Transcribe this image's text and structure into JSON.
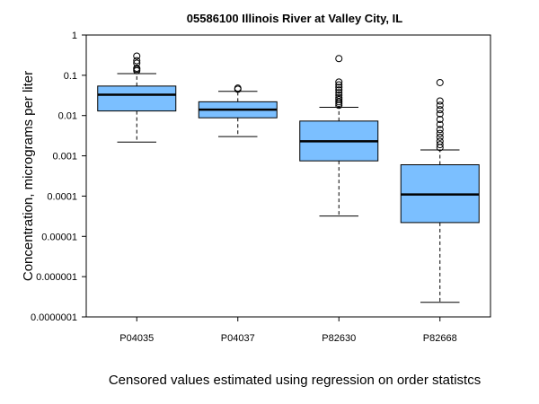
{
  "chart_data": {
    "type": "boxplot",
    "title": "05586100 Illinois River at Valley City, IL",
    "ylabel": "Concentration, micrograms per liter",
    "xlabel": "",
    "caption": "Censored values estimated using regression on order statistcs",
    "yscale": "log",
    "ylim": [
      1e-07,
      1
    ],
    "yticks": [
      {
        "value": 1,
        "label": "1"
      },
      {
        "value": 0.1,
        "label": "0.1"
      },
      {
        "value": 0.01,
        "label": "0.01"
      },
      {
        "value": 0.001,
        "label": "0.001"
      },
      {
        "value": 0.0001,
        "label": "0.0001"
      },
      {
        "value": 1e-05,
        "label": "0.00001"
      },
      {
        "value": 1e-06,
        "label": "0.000001"
      },
      {
        "value": 1e-07,
        "label": "0.0000001"
      }
    ],
    "categories": [
      "P04035",
      "P04037",
      "P82630",
      "P82668"
    ],
    "box_color": "#7bbfff",
    "boxes": [
      {
        "label": "P04035",
        "whisker_low": 0.0022,
        "q1": 0.013,
        "median": 0.033,
        "q3": 0.054,
        "whisker_high": 0.11,
        "outliers": [
          0.13,
          0.14,
          0.15,
          0.2,
          0.23,
          0.3
        ]
      },
      {
        "label": "P04037",
        "whisker_low": 0.003,
        "q1": 0.0088,
        "median": 0.014,
        "q3": 0.022,
        "whisker_high": 0.04,
        "outliers": [
          0.045,
          0.048
        ]
      },
      {
        "label": "P82630",
        "whisker_low": 3.2e-05,
        "q1": 0.00075,
        "median": 0.0023,
        "q3": 0.0073,
        "whisker_high": 0.016,
        "outliers": [
          0.018,
          0.02,
          0.022,
          0.025,
          0.028,
          0.032,
          0.037,
          0.043,
          0.05,
          0.058,
          0.068,
          0.26
        ]
      },
      {
        "label": "P82668",
        "whisker_low": 2.3e-07,
        "q1": 2.2e-05,
        "median": 0.00011,
        "q3": 0.0006,
        "whisker_high": 0.0014,
        "outliers": [
          0.0016,
          0.0019,
          0.0023,
          0.0029,
          0.0036,
          0.0045,
          0.006,
          0.008,
          0.011,
          0.014,
          0.018,
          0.023,
          0.066
        ]
      }
    ]
  }
}
